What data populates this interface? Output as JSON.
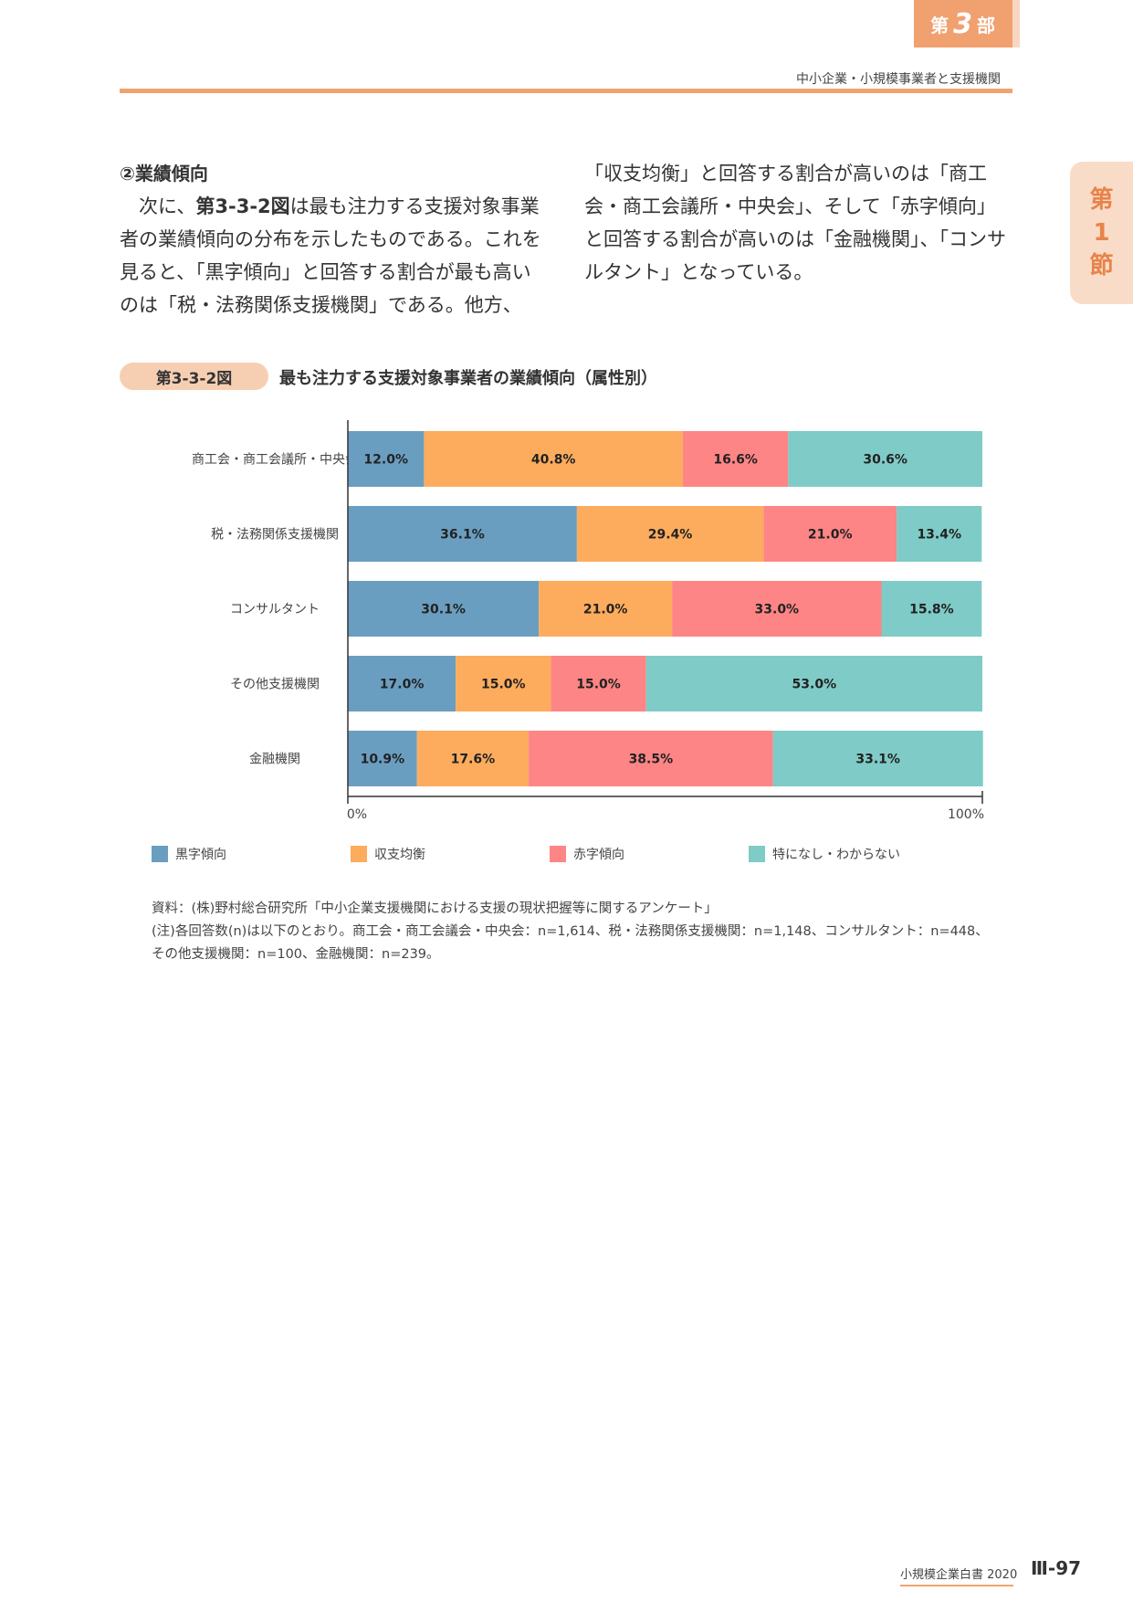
{
  "header": {
    "part_prefix": "第",
    "part_number": "3",
    "part_suffix": "部",
    "subtitle": "中小企業・小規模事業者と支援機関"
  },
  "section_tab": {
    "line1": "第",
    "line2": "1",
    "line3": "節"
  },
  "body": {
    "heading": "②業績傾向",
    "p1_start": "次に、",
    "p1_ref": "第3-3-2図",
    "p1_rest": "は最も注力する支援対象事業者の業績傾向の分布を示したものである。これを見ると、「黒字傾向」と回答する割合が最も高いのは「税・法務関係支援機関」である。他方、",
    "p2": "「収支均衡」と回答する割合が高いのは「商工会・商工会議所・中央会」、そして「赤字傾向」と回答する割合が高いのは「金融機関」、「コンサルタント」となっている。"
  },
  "figure": {
    "label": "第3-3-2図",
    "title": "最も注力する支援対象事業者の業績傾向（属性別）"
  },
  "chart_data": {
    "type": "bar",
    "orientation": "horizontal",
    "stacked": true,
    "categories": [
      "商工会・商工会議所・中央会",
      "税・法務関係支援機関",
      "コンサルタント",
      "その他支援機関",
      "金融機関"
    ],
    "series": [
      {
        "name": "黒字傾向",
        "values": [
          12.0,
          36.1,
          30.1,
          17.0,
          10.9
        ],
        "color": "#6a9ec0"
      },
      {
        "name": "収支均衡",
        "values": [
          40.8,
          29.4,
          21.0,
          15.0,
          17.6
        ],
        "color": "#fdac5d"
      },
      {
        "name": "赤字傾向",
        "values": [
          16.6,
          21.0,
          33.0,
          15.0,
          38.5
        ],
        "color": "#fd8585"
      },
      {
        "name": "特になし・わからない",
        "values": [
          30.6,
          13.4,
          15.8,
          53.0,
          33.1
        ],
        "color": "#7fcbc7"
      }
    ],
    "value_format": "%",
    "xlim": [
      0,
      100
    ],
    "x_tick_labels": [
      "0%",
      "100%"
    ],
    "legend_position": "bottom",
    "grid": false
  },
  "notes": {
    "source": "資料：(株)野村総合研究所「中小企業支援機関における支援の現状把握等に関するアンケート」",
    "note": "(注)各回答数(n)は以下のとおり。商工会・商工会議会・中央会：n=1,614、税・法務関係支援機関：n=1,148、コンサルタント：n=448、その他支援機関：n=100、金融機関：n=239。"
  },
  "footer": {
    "book_title": "小規模企業白書 2020",
    "page_number": "Ⅲ-97"
  }
}
